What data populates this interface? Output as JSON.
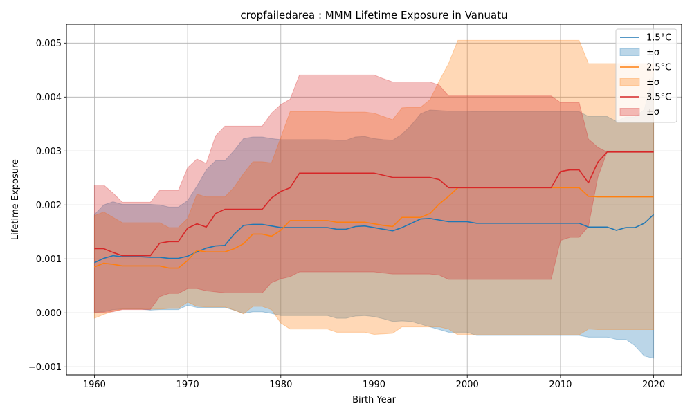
{
  "chart_data": {
    "type": "line",
    "title": "cropfailedarea : MMM Lifetime Exposure in Vanuatu",
    "xlabel": "Birth Year",
    "ylabel": "Lifetime Exposure",
    "xlim": [
      1957,
      2023
    ],
    "ylim": [
      -0.00115,
      0.00535
    ],
    "xticks": [
      1960,
      1970,
      1980,
      1990,
      2000,
      2010,
      2020
    ],
    "yticks": [
      -0.001,
      0.0,
      0.001,
      0.002,
      0.003,
      0.004,
      0.005
    ],
    "ytick_labels": [
      "−0.001",
      "0.000",
      "0.001",
      "0.002",
      "0.003",
      "0.004",
      "0.005"
    ],
    "grid": true,
    "legend_position": "top-right",
    "x": [
      1960,
      1961,
      1962,
      1963,
      1964,
      1965,
      1966,
      1967,
      1968,
      1969,
      1970,
      1971,
      1972,
      1973,
      1974,
      1975,
      1976,
      1977,
      1978,
      1979,
      1980,
      1981,
      1982,
      1983,
      1984,
      1985,
      1986,
      1987,
      1988,
      1989,
      1990,
      1991,
      1992,
      1993,
      1994,
      1995,
      1996,
      1997,
      1998,
      1999,
      2000,
      2001,
      2002,
      2003,
      2004,
      2005,
      2006,
      2007,
      2008,
      2009,
      2010,
      2011,
      2012,
      2013,
      2014,
      2015,
      2016,
      2017,
      2018,
      2019,
      2020
    ],
    "series": [
      {
        "name": "1.5°C",
        "band_label": "±σ",
        "color": "#1f77b4",
        "band_color": "#1f77b4",
        "values": [
          0.00093,
          0.00101,
          0.00106,
          0.00104,
          0.00104,
          0.00104,
          0.00103,
          0.00103,
          0.00101,
          0.00101,
          0.00105,
          0.00113,
          0.0012,
          0.00124,
          0.00125,
          0.00146,
          0.00162,
          0.00164,
          0.00164,
          0.00161,
          0.00158,
          0.00158,
          0.00158,
          0.00158,
          0.00158,
          0.00158,
          0.00155,
          0.00155,
          0.0016,
          0.00161,
          0.00158,
          0.00155,
          0.00152,
          0.00158,
          0.00166,
          0.00174,
          0.00175,
          0.00172,
          0.00169,
          0.00169,
          0.00169,
          0.00166,
          0.00166,
          0.00166,
          0.00166,
          0.00166,
          0.00166,
          0.00166,
          0.00166,
          0.00166,
          0.00166,
          0.00166,
          0.00166,
          0.00159,
          0.00159,
          0.00159,
          0.00153,
          0.00158,
          0.00158,
          0.00166,
          0.00182
        ],
        "upper": [
          0.00182,
          0.002,
          0.00206,
          0.00201,
          0.00201,
          0.00201,
          0.00201,
          0.002,
          0.00196,
          0.00196,
          0.00208,
          0.00235,
          0.00265,
          0.00282,
          0.00282,
          0.00301,
          0.00323,
          0.00326,
          0.00326,
          0.00323,
          0.00321,
          0.00321,
          0.00321,
          0.00321,
          0.00321,
          0.00321,
          0.0032,
          0.0032,
          0.00326,
          0.00327,
          0.00323,
          0.00321,
          0.0032,
          0.00331,
          0.00348,
          0.00369,
          0.00376,
          0.00375,
          0.00374,
          0.00374,
          0.00374,
          0.00373,
          0.00373,
          0.00373,
          0.00373,
          0.00373,
          0.00373,
          0.00373,
          0.00373,
          0.00373,
          0.00373,
          0.00373,
          0.00373,
          0.00364,
          0.00364,
          0.00364,
          0.00355,
          0.00363,
          0.00363,
          0.00377,
          0.00444
        ],
        "lower": [
          1e-05,
          2e-05,
          6e-05,
          7e-05,
          7e-05,
          7e-05,
          5e-05,
          6e-05,
          6e-05,
          6e-05,
          0.00014,
          0.0001,
          0.0001,
          0.0001,
          0.0001,
          5e-05,
          -1e-05,
          2e-05,
          2e-05,
          -1e-05,
          -5e-05,
          -5e-05,
          -5e-05,
          -5e-05,
          -5e-05,
          -5e-05,
          -0.0001,
          -0.0001,
          -6e-05,
          -5e-05,
          -7e-05,
          -0.00011,
          -0.00016,
          -0.00015,
          -0.00016,
          -0.00021,
          -0.00026,
          -0.00031,
          -0.00036,
          -0.00036,
          -0.00036,
          -0.00042,
          -0.00042,
          -0.00042,
          -0.00042,
          -0.00042,
          -0.00042,
          -0.00042,
          -0.00042,
          -0.00042,
          -0.00042,
          -0.00042,
          -0.00042,
          -0.00045,
          -0.00045,
          -0.00045,
          -0.00049,
          -0.00049,
          -0.00061,
          -0.0008,
          -0.00084
        ]
      },
      {
        "name": "2.5°C",
        "band_label": "±σ",
        "color": "#ff7f0e",
        "band_color": "#ff7f0e",
        "values": [
          0.00085,
          0.00092,
          0.0009,
          0.00087,
          0.00087,
          0.00087,
          0.00087,
          0.00087,
          0.00083,
          0.00083,
          0.00097,
          0.00116,
          0.00113,
          0.00113,
          0.00113,
          0.00119,
          0.00128,
          0.00146,
          0.00146,
          0.00142,
          0.00153,
          0.00171,
          0.00171,
          0.00171,
          0.00171,
          0.00171,
          0.00168,
          0.00168,
          0.00168,
          0.00168,
          0.00165,
          0.00162,
          0.0016,
          0.00177,
          0.00177,
          0.00177,
          0.00184,
          0.00202,
          0.00216,
          0.00232,
          0.00232,
          0.00232,
          0.00232,
          0.00232,
          0.00232,
          0.00232,
          0.00232,
          0.00232,
          0.00232,
          0.00232,
          0.00232,
          0.00232,
          0.00232,
          0.00216,
          0.00215,
          0.00215,
          0.00215,
          0.00215,
          0.00215,
          0.00215,
          0.00215
        ],
        "upper": [
          0.0018,
          0.00187,
          0.00177,
          0.00167,
          0.00167,
          0.00167,
          0.00167,
          0.00167,
          0.00158,
          0.00158,
          0.00175,
          0.0022,
          0.00215,
          0.00215,
          0.00215,
          0.00233,
          0.00258,
          0.0028,
          0.0028,
          0.00278,
          0.00325,
          0.00373,
          0.00373,
          0.00373,
          0.00373,
          0.00373,
          0.00372,
          0.00372,
          0.00372,
          0.00372,
          0.0037,
          0.00364,
          0.00358,
          0.0038,
          0.00381,
          0.00381,
          0.00395,
          0.0043,
          0.00462,
          0.00505,
          0.00505,
          0.00505,
          0.00505,
          0.00505,
          0.00505,
          0.00505,
          0.00505,
          0.00505,
          0.00505,
          0.00505,
          0.00505,
          0.00505,
          0.00505,
          0.00462,
          0.00462,
          0.00462,
          0.00462,
          0.00462,
          0.00462,
          0.00462,
          0.00462
        ],
        "lower": [
          -0.0001,
          -3e-05,
          3e-05,
          7e-05,
          7e-05,
          7e-05,
          7e-05,
          7e-05,
          8e-05,
          8e-05,
          0.0002,
          0.00012,
          0.00011,
          0.00011,
          0.00011,
          5e-05,
          -2e-05,
          0.00012,
          0.00012,
          6e-05,
          -0.00019,
          -0.0003,
          -0.0003,
          -0.0003,
          -0.0003,
          -0.0003,
          -0.00036,
          -0.00036,
          -0.00036,
          -0.00036,
          -0.0004,
          -0.00039,
          -0.00038,
          -0.00026,
          -0.00026,
          -0.00026,
          -0.00026,
          -0.00026,
          -0.0003,
          -0.00041,
          -0.00041,
          -0.00041,
          -0.00041,
          -0.00041,
          -0.00041,
          -0.00041,
          -0.00041,
          -0.00041,
          -0.00041,
          -0.00041,
          -0.00041,
          -0.00041,
          -0.00041,
          -0.0003,
          -0.00031,
          -0.00031,
          -0.00031,
          -0.00031,
          -0.00031,
          -0.00031,
          -0.00031
        ]
      },
      {
        "name": "3.5°C",
        "band_label": "±σ",
        "color": "#d62728",
        "band_color": "#d62728",
        "values": [
          0.00119,
          0.00119,
          0.00112,
          0.00106,
          0.00106,
          0.00106,
          0.00106,
          0.00129,
          0.00132,
          0.00132,
          0.00157,
          0.00165,
          0.00159,
          0.00184,
          0.00192,
          0.00192,
          0.00192,
          0.00192,
          0.00192,
          0.00213,
          0.00225,
          0.00232,
          0.00259,
          0.00259,
          0.00259,
          0.00259,
          0.00259,
          0.00259,
          0.00259,
          0.00259,
          0.00259,
          0.00255,
          0.00251,
          0.00251,
          0.00251,
          0.00251,
          0.00251,
          0.00247,
          0.00232,
          0.00232,
          0.00232,
          0.00232,
          0.00232,
          0.00232,
          0.00232,
          0.00232,
          0.00232,
          0.00232,
          0.00232,
          0.00232,
          0.00262,
          0.00265,
          0.00265,
          0.00241,
          0.00279,
          0.00298,
          0.00298,
          0.00298,
          0.00298,
          0.00298,
          0.00298
        ],
        "upper": [
          0.00237,
          0.00237,
          0.00222,
          0.00205,
          0.00205,
          0.00205,
          0.00205,
          0.00227,
          0.00227,
          0.00227,
          0.00269,
          0.00285,
          0.00277,
          0.00328,
          0.00346,
          0.00346,
          0.00346,
          0.00346,
          0.00346,
          0.0037,
          0.00386,
          0.00396,
          0.00441,
          0.00441,
          0.00441,
          0.00441,
          0.00441,
          0.00441,
          0.00441,
          0.00441,
          0.00441,
          0.00434,
          0.00428,
          0.00428,
          0.00428,
          0.00428,
          0.00428,
          0.00422,
          0.00402,
          0.00402,
          0.00402,
          0.00402,
          0.00402,
          0.00402,
          0.00402,
          0.00402,
          0.00402,
          0.00402,
          0.00402,
          0.00402,
          0.0039,
          0.0039,
          0.0039,
          0.00322,
          0.00307,
          0.00298,
          0.00298,
          0.00298,
          0.00298,
          0.00298,
          0.00298
        ],
        "lower": [
          1e-05,
          1e-05,
          2e-05,
          6e-05,
          6e-05,
          6e-05,
          6e-05,
          0.0003,
          0.00036,
          0.00036,
          0.00045,
          0.00045,
          0.00041,
          0.00039,
          0.00037,
          0.00037,
          0.00037,
          0.00037,
          0.00037,
          0.00056,
          0.00063,
          0.00067,
          0.00076,
          0.00076,
          0.00076,
          0.00076,
          0.00076,
          0.00076,
          0.00076,
          0.00076,
          0.00076,
          0.00074,
          0.00072,
          0.00072,
          0.00072,
          0.00072,
          0.00072,
          0.0007,
          0.00062,
          0.00062,
          0.00062,
          0.00062,
          0.00062,
          0.00062,
          0.00062,
          0.00062,
          0.00062,
          0.00062,
          0.00062,
          0.00062,
          0.00134,
          0.0014,
          0.0014,
          0.0016,
          0.00251,
          0.00298,
          0.00298,
          0.00298,
          0.00298,
          0.00298,
          0.00298
        ]
      }
    ]
  }
}
